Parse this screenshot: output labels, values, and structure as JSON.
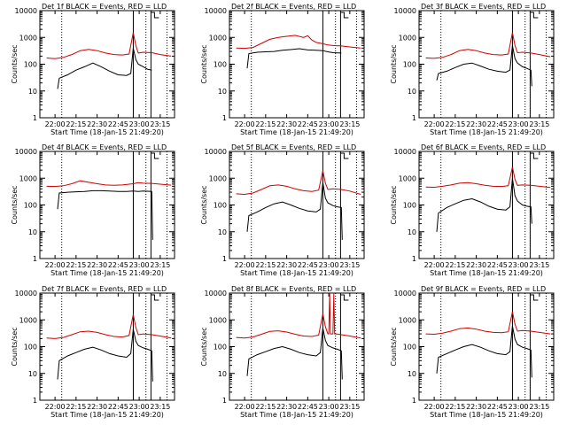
{
  "x_ticks": [
    "22:00",
    "22:15",
    "22:30",
    "22:45",
    "23:00",
    "23:15"
  ],
  "x_tick_hours": [
    22.0,
    22.25,
    22.5,
    22.75,
    23.0,
    23.25
  ],
  "x_range_hours": [
    21.82,
    23.42
  ],
  "y_ticks": [
    "1",
    "10",
    "100",
    "1000",
    "10000"
  ],
  "y_tick_values": [
    1,
    10,
    100,
    1000,
    10000
  ],
  "y_range": [
    1,
    10000
  ],
  "y_scale": "log",
  "colors": {
    "events": "#000000",
    "lld": "#d00000",
    "axes": "#000000"
  },
  "chart_data": [
    {
      "type": "line",
      "title": "Det 1f BLACK = Events, RED = LLD",
      "xlabel": "Start Time (18-Jan-15 21:49:20)",
      "ylabel": "Counts/sec",
      "yscale": "log",
      "ylim": [
        1,
        10000
      ],
      "dotted_markers": [
        22.08,
        23.08,
        23.33
      ],
      "solid_markers": [
        22.93,
        23.14
      ],
      "series": [
        {
          "name": "Events",
          "color": "#000000",
          "x": [
            22.03,
            22.05,
            22.15,
            22.25,
            22.35,
            22.45,
            22.55,
            22.65,
            22.75,
            22.85,
            22.9,
            22.93,
            22.96,
            22.99,
            23.05,
            23.1,
            23.15
          ],
          "y": [
            12,
            30,
            40,
            60,
            80,
            110,
            80,
            55,
            40,
            38,
            45,
            400,
            150,
            100,
            80,
            65,
            60
          ]
        },
        {
          "name": "LLD",
          "color": "#d00000",
          "x": [
            21.9,
            22.0,
            22.1,
            22.2,
            22.3,
            22.4,
            22.5,
            22.6,
            22.7,
            22.8,
            22.88,
            22.93,
            22.96,
            22.99,
            23.05,
            23.15,
            23.25,
            23.38
          ],
          "y": [
            170,
            160,
            180,
            230,
            320,
            360,
            320,
            260,
            230,
            220,
            240,
            1500,
            500,
            260,
            280,
            270,
            230,
            200
          ]
        }
      ]
    },
    {
      "type": "line",
      "title": "Det 2f BLACK = Events, RED = LLD",
      "xlabel": "Start Time (18-Jan-15 21:49:20)",
      "ylabel": "Counts/sec",
      "yscale": "log",
      "ylim": [
        1,
        10000
      ],
      "dotted_markers": [
        22.08,
        23.08,
        23.33
      ],
      "solid_markers": [
        22.93,
        23.14
      ],
      "series": [
        {
          "name": "Events",
          "color": "#000000",
          "x": [
            22.03,
            22.05,
            22.15,
            22.25,
            22.35,
            22.45,
            22.55,
            22.65,
            22.75,
            22.85,
            22.93,
            22.99,
            23.05,
            23.15
          ],
          "y": [
            70,
            250,
            280,
            290,
            300,
            330,
            350,
            380,
            340,
            330,
            320,
            290,
            270,
            260
          ]
        },
        {
          "name": "LLD",
          "color": "#d00000",
          "x": [
            21.9,
            22.0,
            22.1,
            22.2,
            22.3,
            22.4,
            22.5,
            22.6,
            22.7,
            22.75,
            22.8,
            22.85,
            22.93,
            22.99,
            23.05,
            23.15,
            23.25,
            23.38
          ],
          "y": [
            400,
            390,
            420,
            600,
            850,
            1000,
            1100,
            1200,
            1000,
            1150,
            800,
            650,
            580,
            520,
            500,
            480,
            440,
            400
          ]
        }
      ]
    },
    {
      "type": "line",
      "title": "Det 3f BLACK = Events, RED = LLD",
      "xlabel": "Start Time (18-Jan-15 21:49:20)",
      "ylabel": "Counts/sec",
      "yscale": "log",
      "ylim": [
        1,
        10000
      ],
      "dotted_markers": [
        22.08,
        23.08,
        23.33
      ],
      "solid_markers": [
        22.93,
        23.14
      ],
      "series": [
        {
          "name": "Events",
          "color": "#000000",
          "x": [
            22.03,
            22.05,
            22.15,
            22.25,
            22.35,
            22.45,
            22.55,
            22.65,
            22.75,
            22.85,
            22.9,
            22.93,
            22.96,
            22.99,
            23.05,
            23.1,
            23.15,
            23.16
          ],
          "y": [
            25,
            45,
            55,
            75,
            100,
            110,
            85,
            65,
            55,
            50,
            60,
            500,
            160,
            110,
            80,
            70,
            60,
            15
          ]
        },
        {
          "name": "LLD",
          "color": "#d00000",
          "x": [
            21.9,
            22.0,
            22.1,
            22.2,
            22.3,
            22.4,
            22.5,
            22.6,
            22.7,
            22.8,
            22.88,
            22.93,
            22.96,
            22.99,
            23.05,
            23.15,
            23.25,
            23.38
          ],
          "y": [
            170,
            165,
            180,
            230,
            320,
            360,
            320,
            260,
            230,
            220,
            240,
            1500,
            500,
            270,
            280,
            260,
            230,
            190
          ]
        }
      ]
    },
    {
      "type": "line",
      "title": "Det 4f BLACK = Events, RED = LLD",
      "xlabel": "Start Time (18-Jan-15 21:49:20)",
      "ylabel": "Counts/sec",
      "yscale": "log",
      "ylim": [
        1,
        10000
      ],
      "dotted_markers": [
        22.08,
        23.08,
        23.33
      ],
      "solid_markers": [
        22.93,
        23.14
      ],
      "series": [
        {
          "name": "Events",
          "color": "#000000",
          "x": [
            22.03,
            22.05,
            22.15,
            22.25,
            22.35,
            22.45,
            22.55,
            22.65,
            22.75,
            22.85,
            22.93,
            22.99,
            23.05,
            23.15,
            23.16
          ],
          "y": [
            70,
            280,
            300,
            310,
            320,
            340,
            340,
            330,
            320,
            320,
            330,
            320,
            330,
            320,
            5
          ]
        },
        {
          "name": "LLD",
          "color": "#d00000",
          "x": [
            21.9,
            22.0,
            22.1,
            22.2,
            22.3,
            22.4,
            22.5,
            22.6,
            22.7,
            22.8,
            22.93,
            22.99,
            23.05,
            23.15,
            23.25,
            23.38
          ],
          "y": [
            500,
            490,
            520,
            620,
            800,
            700,
            620,
            560,
            540,
            560,
            620,
            680,
            650,
            640,
            600,
            550
          ]
        }
      ]
    },
    {
      "type": "line",
      "title": "Det 5f BLACK = Events, RED = LLD",
      "xlabel": "Start Time (18-Jan-15 21:49:20)",
      "ylabel": "Counts/sec",
      "yscale": "log",
      "ylim": [
        1,
        10000
      ],
      "dotted_markers": [
        22.08,
        23.08,
        23.33
      ],
      "solid_markers": [
        22.93,
        23.14
      ],
      "series": [
        {
          "name": "Events",
          "color": "#000000",
          "x": [
            22.03,
            22.05,
            22.15,
            22.25,
            22.35,
            22.45,
            22.55,
            22.65,
            22.75,
            22.85,
            22.9,
            22.93,
            22.96,
            22.99,
            23.05,
            23.1,
            23.15,
            23.16
          ],
          "y": [
            10,
            40,
            55,
            80,
            110,
            130,
            100,
            75,
            60,
            55,
            70,
            700,
            180,
            120,
            95,
            85,
            80,
            5
          ]
        },
        {
          "name": "LLD",
          "color": "#d00000",
          "x": [
            21.9,
            22.0,
            22.1,
            22.2,
            22.3,
            22.4,
            22.5,
            22.6,
            22.7,
            22.8,
            22.88,
            22.93,
            22.96,
            22.99,
            23.05,
            23.15,
            23.25,
            23.38
          ],
          "y": [
            260,
            250,
            280,
            380,
            520,
            560,
            500,
            400,
            340,
            320,
            360,
            1900,
            650,
            380,
            400,
            380,
            330,
            250
          ]
        }
      ]
    },
    {
      "type": "line",
      "title": "Det 6f BLACK = Events, RED = LLD",
      "xlabel": "Start Time (18-Jan-15 21:49:20)",
      "ylabel": "Counts/sec",
      "yscale": "log",
      "ylim": [
        1,
        10000
      ],
      "dotted_markers": [
        22.08,
        23.08,
        23.33
      ],
      "solid_markers": [
        22.93,
        23.14
      ],
      "series": [
        {
          "name": "Events",
          "color": "#000000",
          "x": [
            22.03,
            22.05,
            22.15,
            22.25,
            22.35,
            22.45,
            22.55,
            22.65,
            22.75,
            22.85,
            22.9,
            22.93,
            22.96,
            22.99,
            23.05,
            23.1,
            23.15,
            23.16
          ],
          "y": [
            10,
            50,
            80,
            110,
            150,
            170,
            130,
            90,
            70,
            65,
            85,
            1000,
            220,
            140,
            100,
            90,
            85,
            20
          ]
        },
        {
          "name": "LLD",
          "color": "#d00000",
          "x": [
            21.9,
            22.0,
            22.1,
            22.2,
            22.3,
            22.4,
            22.5,
            22.6,
            22.7,
            22.8,
            22.88,
            22.93,
            22.96,
            22.99,
            23.05,
            23.15,
            23.25,
            23.38
          ],
          "y": [
            470,
            460,
            500,
            560,
            650,
            680,
            620,
            540,
            500,
            490,
            520,
            2600,
            900,
            540,
            560,
            540,
            500,
            450
          ]
        }
      ]
    },
    {
      "type": "line",
      "title": "Det 7f BLACK = Events, RED = LLD",
      "xlabel": "Start Time (18-Jan-15 21:49:20)",
      "ylabel": "Counts/sec",
      "yscale": "log",
      "ylim": [
        1,
        10000
      ],
      "dotted_markers": [
        22.08,
        23.08,
        23.33
      ],
      "solid_markers": [
        22.93,
        23.14
      ],
      "series": [
        {
          "name": "Events",
          "color": "#000000",
          "x": [
            22.03,
            22.05,
            22.15,
            22.25,
            22.35,
            22.45,
            22.55,
            22.65,
            22.75,
            22.85,
            22.9,
            22.93,
            22.96,
            22.99,
            23.05,
            23.1,
            23.15,
            23.16
          ],
          "y": [
            6,
            30,
            45,
            60,
            80,
            95,
            75,
            55,
            45,
            40,
            55,
            450,
            160,
            110,
            90,
            80,
            70,
            5
          ]
        },
        {
          "name": "LLD",
          "color": "#d00000",
          "x": [
            21.9,
            22.0,
            22.1,
            22.2,
            22.3,
            22.4,
            22.5,
            22.6,
            22.7,
            22.8,
            22.88,
            22.93,
            22.96,
            22.99,
            23.05,
            23.15,
            23.25,
            23.38
          ],
          "y": [
            210,
            200,
            220,
            280,
            360,
            380,
            340,
            280,
            240,
            230,
            260,
            1600,
            520,
            280,
            300,
            280,
            250,
            210
          ]
        }
      ]
    },
    {
      "type": "line",
      "title": "Det 8f BLACK = Events, RED = LLD",
      "xlabel": "Start Time (18-Jan-15 21:49:20)",
      "ylabel": "Counts/sec",
      "yscale": "log",
      "ylim": [
        1,
        10000
      ],
      "dotted_markers": [
        22.08,
        23.08,
        23.33
      ],
      "solid_markers": [
        22.93,
        23.14
      ],
      "series": [
        {
          "name": "Events",
          "color": "#000000",
          "x": [
            22.03,
            22.05,
            22.15,
            22.25,
            22.35,
            22.45,
            22.55,
            22.65,
            22.75,
            22.85,
            22.9,
            22.93,
            22.96,
            22.99,
            23.05,
            23.1,
            23.15,
            23.16
          ],
          "y": [
            8,
            35,
            50,
            65,
            85,
            100,
            80,
            60,
            50,
            45,
            60,
            500,
            170,
            110,
            90,
            80,
            70,
            6
          ]
        },
        {
          "name": "LLD",
          "color": "#d00000",
          "x": [
            21.9,
            22.0,
            22.1,
            22.2,
            22.3,
            22.4,
            22.5,
            22.6,
            22.7,
            22.8,
            22.88,
            22.93,
            22.96,
            22.99,
            23.0,
            23.01,
            23.02,
            23.05,
            23.06,
            23.07,
            23.08,
            23.15,
            23.25,
            23.38
          ],
          "y": [
            220,
            210,
            230,
            290,
            370,
            390,
            350,
            290,
            250,
            240,
            270,
            1700,
            550,
            300,
            300,
            9500,
            300,
            300,
            9500,
            300,
            300,
            280,
            250,
            210
          ]
        }
      ]
    },
    {
      "type": "line",
      "title": "Det 9f BLACK = Events, RED = LLD",
      "xlabel": "Start Time (18-Jan-15 21:49:20)",
      "ylabel": "Counts/sec",
      "yscale": "log",
      "ylim": [
        1,
        10000
      ],
      "dotted_markers": [
        22.08,
        23.08,
        23.33
      ],
      "solid_markers": [
        22.93,
        23.14
      ],
      "series": [
        {
          "name": "Events",
          "color": "#000000",
          "x": [
            22.03,
            22.05,
            22.15,
            22.25,
            22.35,
            22.45,
            22.55,
            22.65,
            22.75,
            22.85,
            22.9,
            22.93,
            22.96,
            22.99,
            23.05,
            23.1,
            23.15,
            23.16
          ],
          "y": [
            10,
            40,
            55,
            75,
            100,
            120,
            95,
            70,
            55,
            50,
            65,
            600,
            190,
            120,
            95,
            85,
            75,
            7
          ]
        },
        {
          "name": "LLD",
          "color": "#d00000",
          "x": [
            21.9,
            22.0,
            22.1,
            22.2,
            22.3,
            22.4,
            22.5,
            22.6,
            22.7,
            22.8,
            22.88,
            22.93,
            22.96,
            22.99,
            23.05,
            23.15,
            23.25,
            23.38
          ],
          "y": [
            300,
            290,
            320,
            380,
            470,
            500,
            450,
            380,
            340,
            330,
            360,
            2000,
            680,
            380,
            400,
            380,
            340,
            300
          ]
        }
      ]
    }
  ]
}
